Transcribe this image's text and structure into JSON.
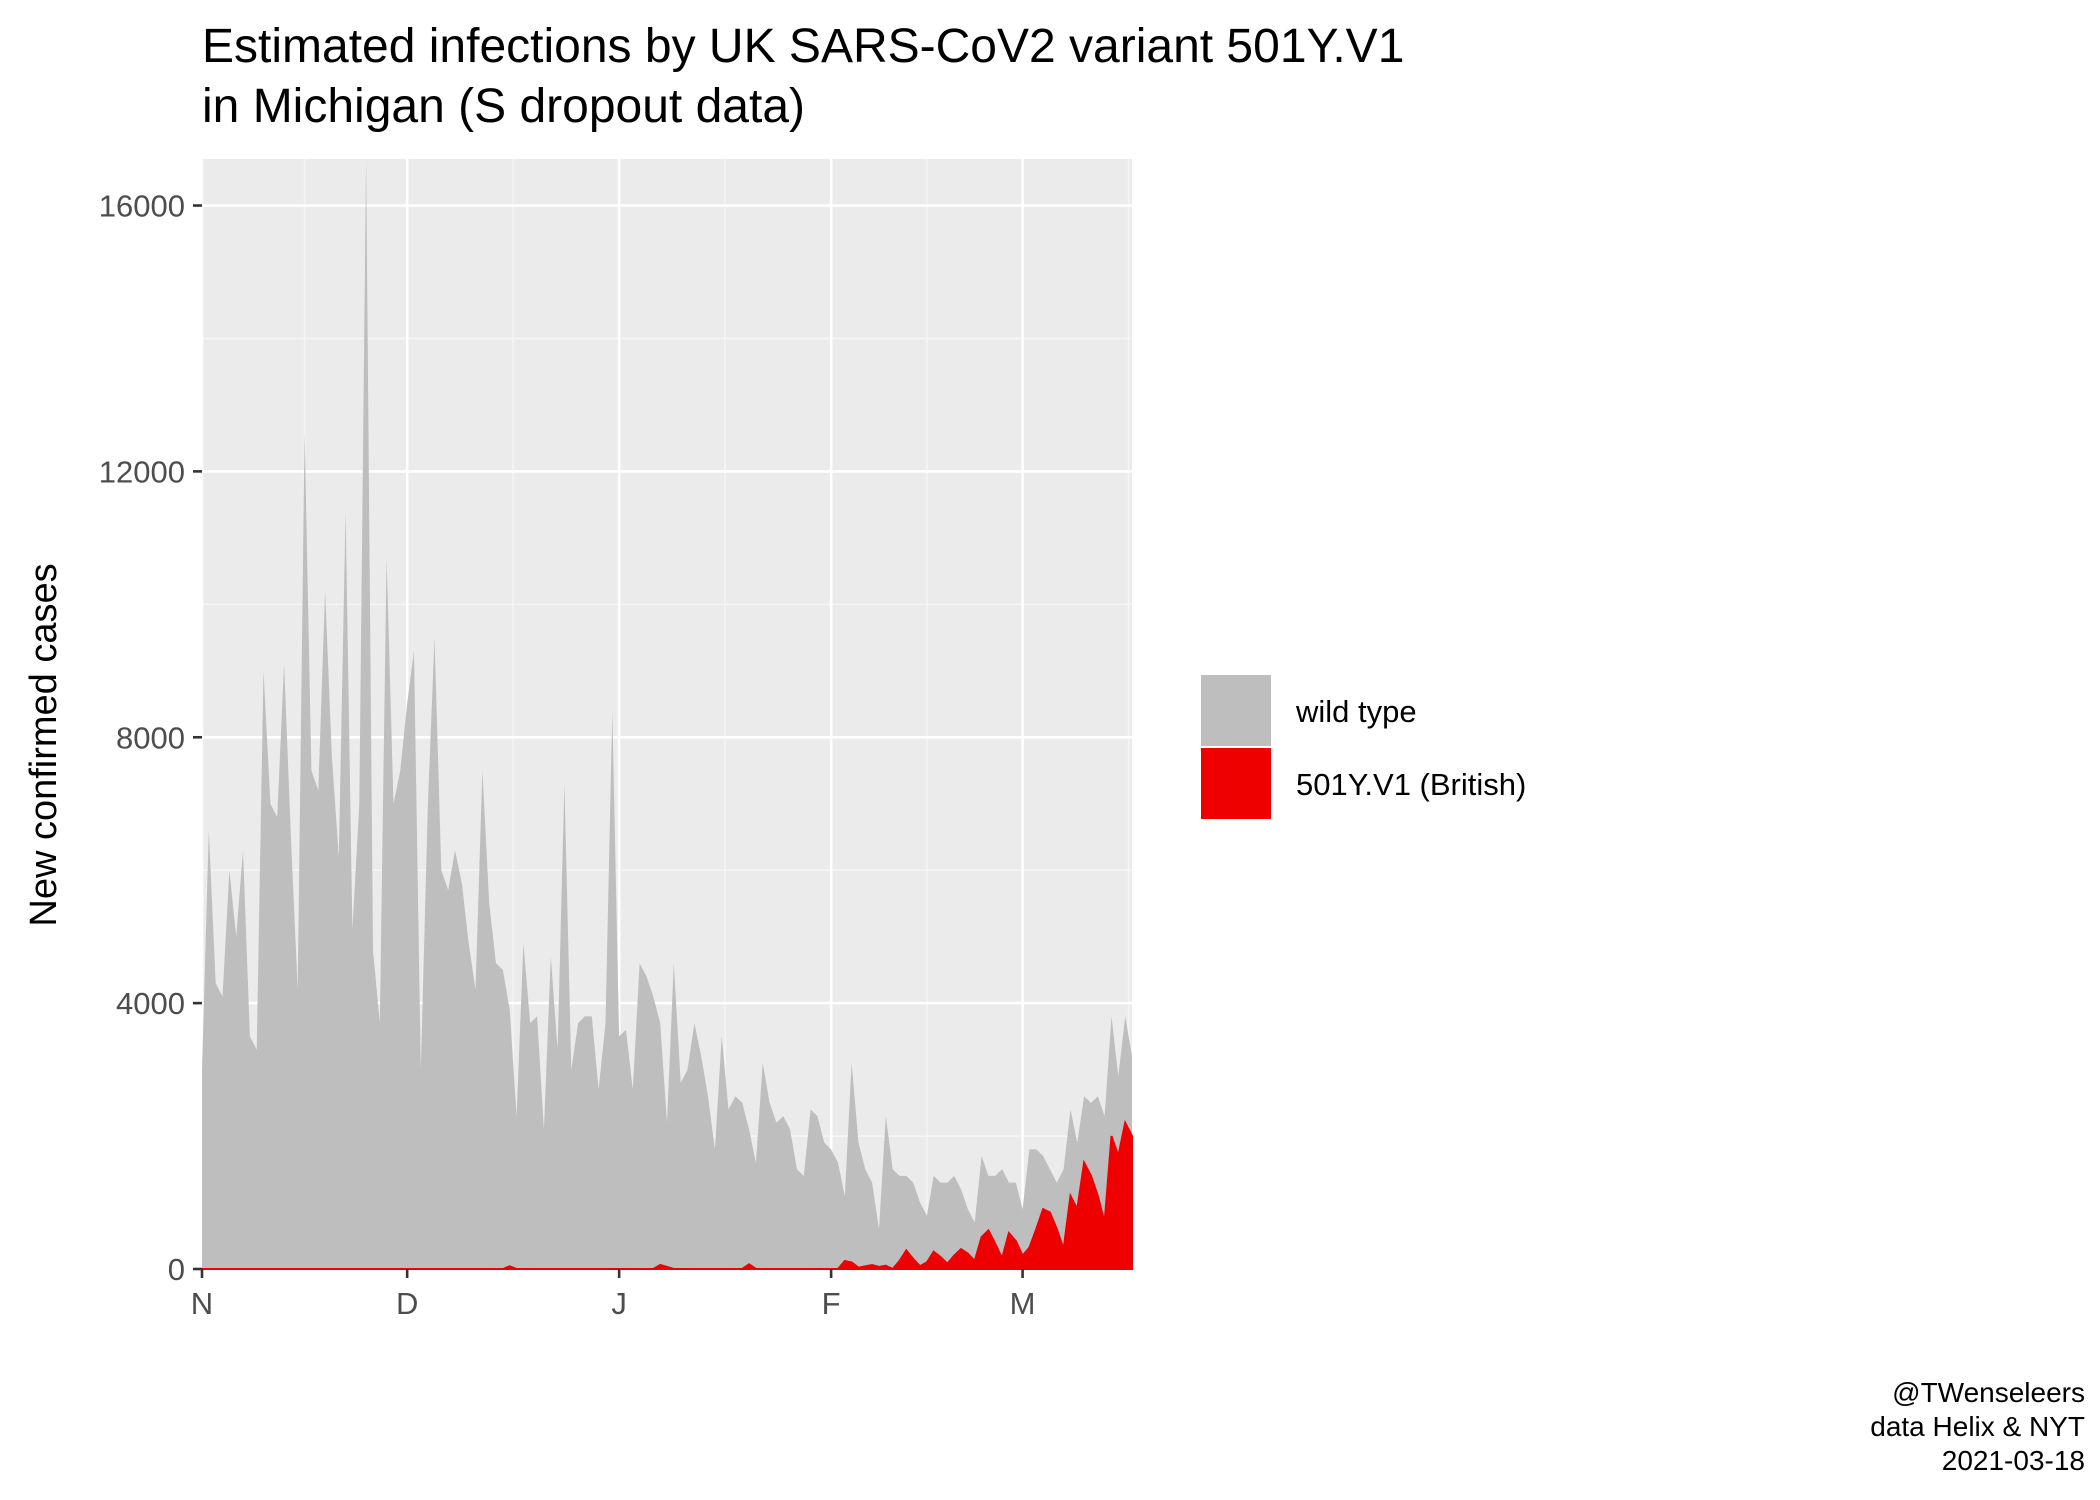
{
  "chart_data": {
    "type": "area",
    "title": [
      "Estimated infections by UK SARS-CoV2 variant 501Y.V1",
      "in Michigan (S dropout data)"
    ],
    "xlabel": "",
    "ylabel": "New confirmed cases",
    "x_ticks": [
      {
        "date": "2020-11-01",
        "label": "N"
      },
      {
        "date": "2020-12-01",
        "label": "D"
      },
      {
        "date": "2021-01-01",
        "label": "J"
      },
      {
        "date": "2021-02-01",
        "label": "F"
      },
      {
        "date": "2021-03-01",
        "label": "M"
      }
    ],
    "xlim": [
      "2020-11-01",
      "2021-03-17"
    ],
    "y_ticks": [
      0,
      4000,
      8000,
      12000,
      16000
    ],
    "ylim": [
      0,
      16700
    ],
    "grid": true,
    "stacked": true,
    "legend_position": "right",
    "series": [
      {
        "name": "wild type",
        "color": "#bebebe",
        "points": [
          [
            "2020-11-01",
            3000
          ],
          [
            "2020-11-02",
            6600
          ],
          [
            "2020-11-03",
            4300
          ],
          [
            "2020-11-04",
            4100
          ],
          [
            "2020-11-05",
            6000
          ],
          [
            "2020-11-06",
            5000
          ],
          [
            "2020-11-07",
            6300
          ],
          [
            "2020-11-08",
            3500
          ],
          [
            "2020-11-09",
            3300
          ],
          [
            "2020-11-10",
            9000
          ],
          [
            "2020-11-11",
            7000
          ],
          [
            "2020-11-12",
            6800
          ],
          [
            "2020-11-13",
            9100
          ],
          [
            "2020-11-14",
            6500
          ],
          [
            "2020-11-15",
            4200
          ],
          [
            "2020-11-16",
            12600
          ],
          [
            "2020-11-17",
            7500
          ],
          [
            "2020-11-18",
            7200
          ],
          [
            "2020-11-19",
            10200
          ],
          [
            "2020-11-20",
            7700
          ],
          [
            "2020-11-21",
            6200
          ],
          [
            "2020-11-22",
            11400
          ],
          [
            "2020-11-23",
            5100
          ],
          [
            "2020-11-24",
            7000
          ],
          [
            "2020-11-25",
            16700
          ],
          [
            "2020-11-26",
            4800
          ],
          [
            "2020-11-27",
            3700
          ],
          [
            "2020-11-28",
            10700
          ],
          [
            "2020-11-29",
            7000
          ],
          [
            "2020-11-30",
            7500
          ],
          [
            "2020-12-01",
            8500
          ],
          [
            "2020-12-02",
            9300
          ],
          [
            "2020-12-03",
            3000
          ],
          [
            "2020-12-04",
            6900
          ],
          [
            "2020-12-05",
            9500
          ],
          [
            "2020-12-06",
            6000
          ],
          [
            "2020-12-07",
            5700
          ],
          [
            "2020-12-08",
            6300
          ],
          [
            "2020-12-09",
            5800
          ],
          [
            "2020-12-10",
            4900
          ],
          [
            "2020-12-11",
            4200
          ],
          [
            "2020-12-12",
            7500
          ],
          [
            "2020-12-13",
            5500
          ],
          [
            "2020-12-14",
            4600
          ],
          [
            "2020-12-15",
            4500
          ],
          [
            "2020-12-16",
            3900
          ],
          [
            "2020-12-17",
            2300
          ],
          [
            "2020-12-18",
            4900
          ],
          [
            "2020-12-19",
            3700
          ],
          [
            "2020-12-20",
            3800
          ],
          [
            "2020-12-21",
            2100
          ],
          [
            "2020-12-22",
            4700
          ],
          [
            "2020-12-23",
            3300
          ],
          [
            "2020-12-24",
            7300
          ],
          [
            "2020-12-25",
            3000
          ],
          [
            "2020-12-26",
            3700
          ],
          [
            "2020-12-27",
            3800
          ],
          [
            "2020-12-28",
            3800
          ],
          [
            "2020-12-29",
            2700
          ],
          [
            "2020-12-30",
            3700
          ],
          [
            "2020-12-31",
            8400
          ],
          [
            "2021-01-01",
            3500
          ],
          [
            "2021-01-02",
            3600
          ],
          [
            "2021-01-03",
            2700
          ],
          [
            "2021-01-04",
            4600
          ],
          [
            "2021-01-05",
            4400
          ],
          [
            "2021-01-06",
            4100
          ],
          [
            "2021-01-07",
            3700
          ],
          [
            "2021-01-08",
            2200
          ],
          [
            "2021-01-09",
            4600
          ],
          [
            "2021-01-10",
            2800
          ],
          [
            "2021-01-11",
            3000
          ],
          [
            "2021-01-12",
            3700
          ],
          [
            "2021-01-13",
            3200
          ],
          [
            "2021-01-14",
            2600
          ],
          [
            "2021-01-15",
            1800
          ],
          [
            "2021-01-16",
            3500
          ],
          [
            "2021-01-17",
            2400
          ],
          [
            "2021-01-18",
            2600
          ],
          [
            "2021-01-19",
            2500
          ],
          [
            "2021-01-20",
            2100
          ],
          [
            "2021-01-21",
            1600
          ],
          [
            "2021-01-22",
            3100
          ],
          [
            "2021-01-23",
            2500
          ],
          [
            "2021-01-24",
            2200
          ],
          [
            "2021-01-25",
            2300
          ],
          [
            "2021-01-26",
            2100
          ],
          [
            "2021-01-27",
            1500
          ],
          [
            "2021-01-28",
            1400
          ],
          [
            "2021-01-29",
            2400
          ],
          [
            "2021-01-30",
            2300
          ],
          [
            "2021-01-31",
            1900
          ],
          [
            "2021-02-01",
            1800
          ],
          [
            "2021-02-02",
            1600
          ],
          [
            "2021-02-03",
            1100
          ],
          [
            "2021-02-04",
            3100
          ],
          [
            "2021-02-05",
            1900
          ],
          [
            "2021-02-06",
            1500
          ],
          [
            "2021-02-07",
            1300
          ],
          [
            "2021-02-08",
            600
          ],
          [
            "2021-02-09",
            2300
          ],
          [
            "2021-02-10",
            1500
          ],
          [
            "2021-02-11",
            1400
          ],
          [
            "2021-02-12",
            1400
          ],
          [
            "2021-02-13",
            1300
          ],
          [
            "2021-02-14",
            1000
          ],
          [
            "2021-02-15",
            800
          ],
          [
            "2021-02-16",
            1400
          ],
          [
            "2021-02-17",
            1300
          ],
          [
            "2021-02-18",
            1300
          ],
          [
            "2021-02-19",
            1400
          ],
          [
            "2021-02-20",
            1200
          ],
          [
            "2021-02-21",
            900
          ],
          [
            "2021-02-22",
            700
          ],
          [
            "2021-02-23",
            1700
          ],
          [
            "2021-02-24",
            1400
          ],
          [
            "2021-02-25",
            1400
          ],
          [
            "2021-02-26",
            1500
          ],
          [
            "2021-02-27",
            1300
          ],
          [
            "2021-02-28",
            1300
          ],
          [
            "2021-03-01",
            900
          ],
          [
            "2021-03-02",
            1800
          ],
          [
            "2021-03-03",
            1800
          ],
          [
            "2021-03-04",
            1700
          ],
          [
            "2021-03-05",
            1500
          ],
          [
            "2021-03-06",
            1300
          ],
          [
            "2021-03-07",
            1500
          ],
          [
            "2021-03-08",
            2400
          ],
          [
            "2021-03-09",
            1900
          ],
          [
            "2021-03-10",
            2600
          ],
          [
            "2021-03-11",
            2500
          ],
          [
            "2021-03-12",
            2600
          ],
          [
            "2021-03-13",
            2300
          ],
          [
            "2021-03-14",
            3800
          ],
          [
            "2021-03-15",
            2900
          ],
          [
            "2021-03-16",
            3800
          ],
          [
            "2021-03-17",
            3200
          ]
        ]
      },
      {
        "name": "501Y.V1 (British)",
        "color": "#ee0000",
        "points": [
          [
            "2020-11-01",
            0
          ],
          [
            "2020-12-15",
            0
          ],
          [
            "2020-12-16",
            40
          ],
          [
            "2020-12-17",
            0
          ],
          [
            "2021-01-06",
            0
          ],
          [
            "2021-01-07",
            60
          ],
          [
            "2021-01-08",
            30
          ],
          [
            "2021-01-09",
            0
          ],
          [
            "2021-01-19",
            0
          ],
          [
            "2021-01-20",
            70
          ],
          [
            "2021-01-21",
            0
          ],
          [
            "2021-02-02",
            0
          ],
          [
            "2021-02-03",
            120
          ],
          [
            "2021-02-04",
            100
          ],
          [
            "2021-02-05",
            20
          ],
          [
            "2021-02-06",
            40
          ],
          [
            "2021-02-07",
            60
          ],
          [
            "2021-02-08",
            30
          ],
          [
            "2021-02-09",
            50
          ],
          [
            "2021-02-10",
            0
          ],
          [
            "2021-02-11",
            120
          ],
          [
            "2021-02-12",
            280
          ],
          [
            "2021-02-13",
            150
          ],
          [
            "2021-02-14",
            40
          ],
          [
            "2021-02-15",
            100
          ],
          [
            "2021-02-16",
            260
          ],
          [
            "2021-02-17",
            180
          ],
          [
            "2021-02-18",
            80
          ],
          [
            "2021-02-19",
            200
          ],
          [
            "2021-02-20",
            300
          ],
          [
            "2021-02-21",
            230
          ],
          [
            "2021-02-22",
            120
          ],
          [
            "2021-02-23",
            480
          ],
          [
            "2021-02-24",
            580
          ],
          [
            "2021-02-25",
            380
          ],
          [
            "2021-02-26",
            160
          ],
          [
            "2021-02-27",
            540
          ],
          [
            "2021-02-28",
            420
          ],
          [
            "2021-03-01",
            200
          ],
          [
            "2021-03-02",
            320
          ],
          [
            "2021-03-03",
            600
          ],
          [
            "2021-03-04",
            900
          ],
          [
            "2021-03-05",
            850
          ],
          [
            "2021-03-06",
            600
          ],
          [
            "2021-03-07",
            300
          ],
          [
            "2021-03-08",
            1100
          ],
          [
            "2021-03-09",
            900
          ],
          [
            "2021-03-10",
            1600
          ],
          [
            "2021-03-11",
            1400
          ],
          [
            "2021-03-12",
            1100
          ],
          [
            "2021-03-13",
            700
          ],
          [
            "2021-03-14",
            2000
          ],
          [
            "2021-03-15",
            1700
          ],
          [
            "2021-03-16",
            2200
          ],
          [
            "2021-03-17",
            2000
          ]
        ]
      }
    ]
  },
  "legend": {
    "items": [
      {
        "label": "wild type",
        "color": "#bebebe"
      },
      {
        "label": "501Y.V1 (British)",
        "color": "#ee0000"
      }
    ]
  },
  "caption": [
    "@TWenseleers",
    "data Helix & NYT",
    "2021-03-18"
  ],
  "colors": {
    "panel_background": "#ebebeb",
    "grid_major": "#ffffff",
    "grid_minor": "#f5f5f5",
    "axis_text": "#4d4d4d",
    "tick_mark": "#333333"
  }
}
